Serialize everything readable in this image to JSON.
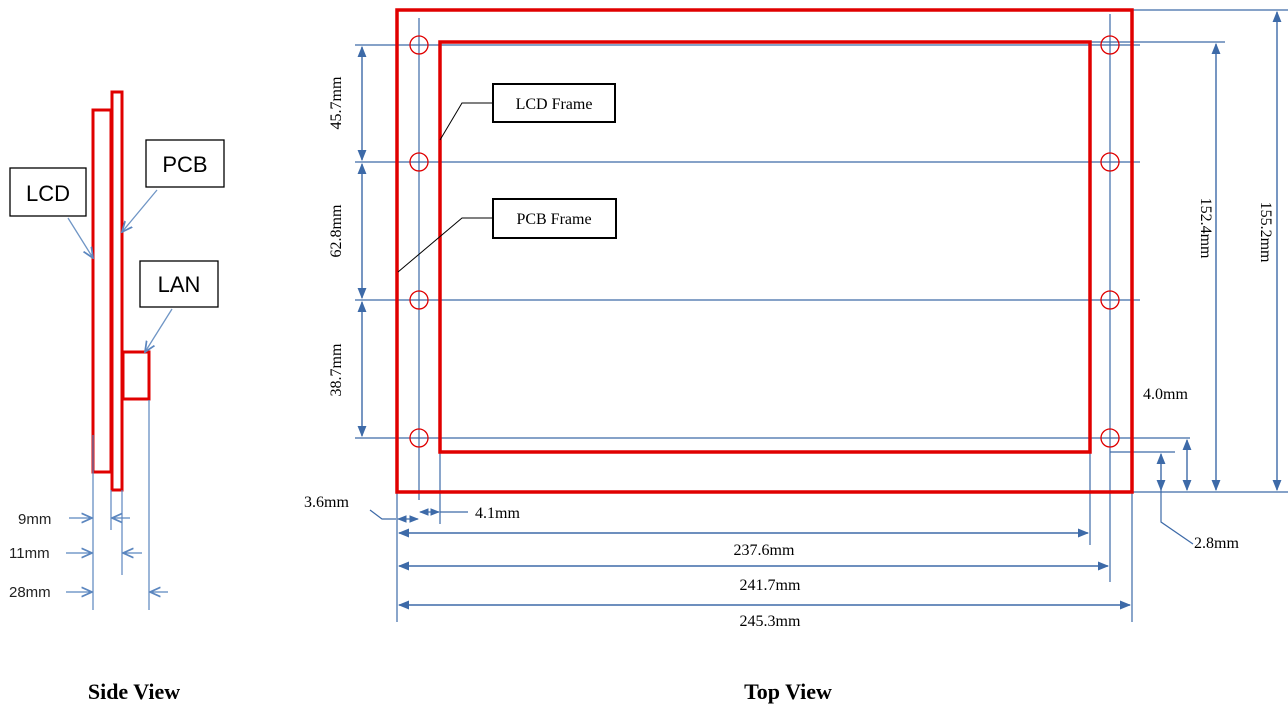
{
  "colors": {
    "frame": "#e00000",
    "dimension": "#3d6aa8",
    "leader": "#7aa0cc",
    "text": "#000000"
  },
  "side_view": {
    "title": "Side View",
    "labels": {
      "lcd": "LCD",
      "pcb": "PCB",
      "lan": "LAN"
    },
    "dims": {
      "d9": "9mm",
      "d11": "11mm",
      "d28": "28mm"
    }
  },
  "top_view": {
    "title": "Top View",
    "labels": {
      "lcd_frame": "LCD Frame",
      "pcb_frame": "PCB Frame"
    },
    "vertical_dims": {
      "d45_7": "45.7mm",
      "d62_8": "62.8mm",
      "d38_7": "38.7mm",
      "d152_4": "152.4mm",
      "d155_2": "155.2mm",
      "d4_0": "4.0mm",
      "d2_8": "2.8mm"
    },
    "horizontal_dims": {
      "d3_6": "3.6mm",
      "d4_1": "4.1mm",
      "d237_6": "237.6mm",
      "d241_7": "241.7mm",
      "d245_3": "245.3mm"
    }
  }
}
